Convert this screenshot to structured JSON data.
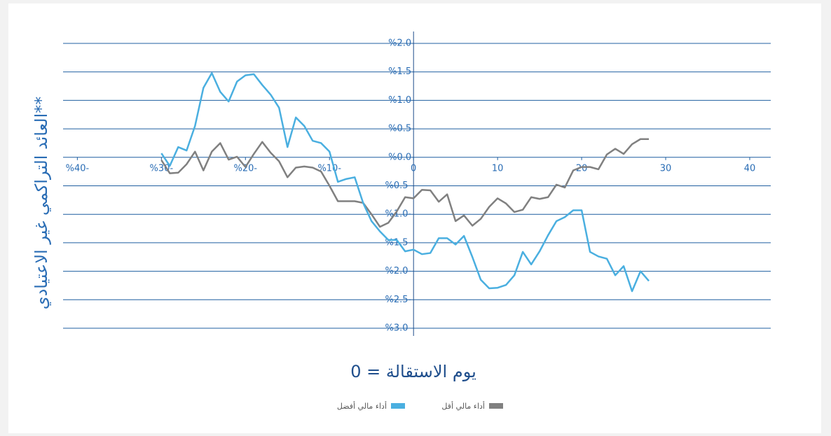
{
  "chart_data": {
    "type": "line",
    "y_axis_label": "العائد التراكمي غير الاعتيادي**",
    "x_axis_label": "يوم الاستقالة = 0",
    "x": [
      -30,
      -29,
      -28,
      -27,
      -26,
      -25,
      -24,
      -23,
      -22,
      -21,
      -20,
      -19,
      -18,
      -17,
      -16,
      -15,
      -14,
      -13,
      -12,
      -11,
      -10,
      -9,
      -8,
      -7,
      -6,
      -5,
      -4,
      -3,
      -2,
      -1,
      0,
      1,
      2,
      3,
      4,
      5,
      6,
      7,
      8,
      9,
      10,
      11,
      12,
      13,
      14,
      15,
      16,
      17,
      18,
      19,
      20,
      21,
      22,
      23,
      24,
      25,
      26,
      27,
      28
    ],
    "series": [
      {
        "name": "أداء مالي أفضل",
        "color": "#4aafe0",
        "values": [
          0.07,
          -0.15,
          0.18,
          0.12,
          0.55,
          1.22,
          1.48,
          1.15,
          0.98,
          1.33,
          1.44,
          1.46,
          1.27,
          1.1,
          0.87,
          0.18,
          0.7,
          0.55,
          0.29,
          0.25,
          0.1,
          -0.43,
          -0.38,
          -0.35,
          -0.8,
          -1.12,
          -1.3,
          -1.45,
          -1.45,
          -1.65,
          -1.62,
          -1.7,
          -1.68,
          -1.42,
          -1.42,
          -1.53,
          -1.38,
          -1.75,
          -2.15,
          -2.3,
          -2.29,
          -2.24,
          -2.07,
          -1.66,
          -1.88,
          -1.65,
          -1.37,
          -1.12,
          -1.05,
          -0.93,
          -0.93,
          -1.66,
          -1.74,
          -1.78,
          -2.07,
          -1.91,
          -2.35,
          -2.0,
          -2.17
        ]
      },
      {
        "name": "أداء مالي أقل",
        "color": "#808080",
        "values": [
          -0.05,
          -0.28,
          -0.27,
          -0.12,
          0.1,
          -0.23,
          0.1,
          0.25,
          -0.04,
          0.01,
          -0.17,
          0.06,
          0.27,
          0.08,
          -0.07,
          -0.35,
          -0.18,
          -0.16,
          -0.18,
          -0.25,
          -0.5,
          -0.77,
          -0.77,
          -0.77,
          -0.8,
          -1.0,
          -1.22,
          -1.15,
          -0.95,
          -0.7,
          -0.72,
          -0.57,
          -0.58,
          -0.78,
          -0.65,
          -1.12,
          -1.02,
          -1.2,
          -1.08,
          -0.87,
          -0.72,
          -0.81,
          -0.96,
          -0.92,
          -0.7,
          -0.73,
          -0.7,
          -0.48,
          -0.53,
          -0.23,
          -0.17,
          -0.17,
          -0.21,
          0.05,
          0.15,
          0.06,
          0.23,
          0.32,
          0.32
        ]
      }
    ],
    "xlim": [
      -41.7,
      42.5
    ],
    "ylim": [
      -3,
      2
    ],
    "xticks": [
      {
        "value": -40,
        "label": "%40-"
      },
      {
        "value": -30,
        "label": "%30-"
      },
      {
        "value": -20,
        "label": "%20-"
      },
      {
        "value": -10,
        "label": "%10-"
      },
      0,
      10,
      20,
      30,
      40
    ],
    "yticks": [
      {
        "value": 2,
        "label": "%2.0"
      },
      {
        "value": 1.5,
        "label": "%1.5"
      },
      {
        "value": 1,
        "label": "%1.0"
      },
      {
        "value": 0.5,
        "label": "%0.5"
      },
      {
        "value": 0,
        "label": "%0.0"
      },
      {
        "value": -0.5,
        "label": "%0.5-"
      },
      {
        "value": -1,
        "label": "%1.0-"
      },
      {
        "value": -1.5,
        "label": "%1.5-"
      },
      {
        "value": -2,
        "label": "%2.0-"
      },
      {
        "value": -2.5,
        "label": "%2.5-"
      },
      {
        "value": -3,
        "label": "%3.0-"
      }
    ],
    "grid": true
  }
}
